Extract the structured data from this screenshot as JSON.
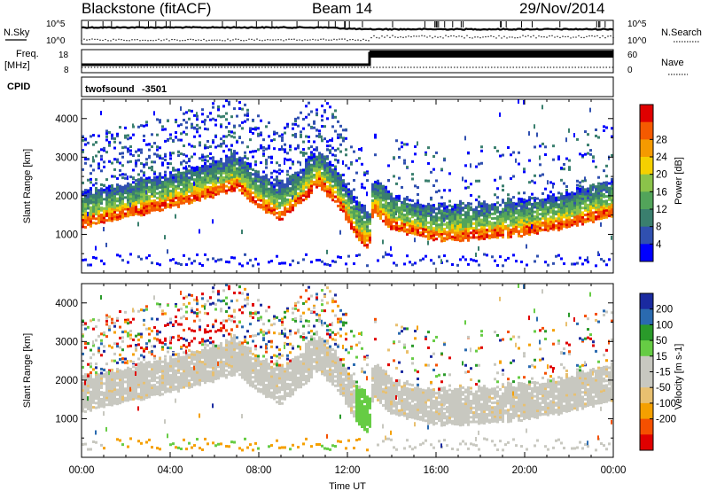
{
  "header": {
    "station": "Blackstone (fitACF)",
    "beam": "Beam 14",
    "date": "29/Nov/2014"
  },
  "left_labels": {
    "nsky": "N.Sky",
    "freq": "Freq.",
    "freq_unit": "[MHz]",
    "cpid": "CPID"
  },
  "right_labels": {
    "nsearch": "N.Search",
    "nave": "Nave"
  },
  "noise_panel": {
    "left_ticks": [
      "10^5",
      "10^0"
    ],
    "right_ticks": [
      "10^5",
      "10^0"
    ]
  },
  "freq_panel": {
    "left_ticks": [
      "18",
      "8"
    ],
    "right_ticks": [
      "60",
      "0"
    ]
  },
  "cpid_panel": {
    "program": "twofsound",
    "cpid_value": "-3501"
  },
  "colors": {
    "power_scale": [
      "#0000ff",
      "#3050b0",
      "#3a7f6e",
      "#52a45a",
      "#8bc34a",
      "#f5d000",
      "#f59a00",
      "#f55a00",
      "#e00000"
    ],
    "velocity_scale": [
      "#e00000",
      "#f55000",
      "#f5a000",
      "#e8c070",
      "#c8c8c0",
      "#c8c8c0",
      "#66cc44",
      "#2a9a2a",
      "#2a6ab0",
      "#1a2aa0"
    ]
  },
  "chart_data": [
    {
      "type": "heatmap",
      "name": "power",
      "xlabel": "",
      "ylabel": "Slant Range [km]",
      "yticks": [
        "1000",
        "2000",
        "3000",
        "4000"
      ],
      "ylim": [
        0,
        4500
      ],
      "colorbar_label": "Power [dB]",
      "colorbar_ticks": [
        "4",
        "8",
        "12",
        "16",
        "20",
        "24",
        "28"
      ],
      "echo_band_center_km": [
        {
          "t": "00:00",
          "range": 1500
        },
        {
          "t": "02:00",
          "range": 1750
        },
        {
          "t": "04:00",
          "range": 2000
        },
        {
          "t": "06:00",
          "range": 2300
        },
        {
          "t": "07:00",
          "range": 2500
        },
        {
          "t": "08:00",
          "range": 2000
        },
        {
          "t": "09:00",
          "range": 1700
        },
        {
          "t": "10:00",
          "range": 2150
        },
        {
          "t": "10:40",
          "range": 2600
        },
        {
          "t": "11:30",
          "range": 2100
        },
        {
          "t": "12:30",
          "range": 1200
        },
        {
          "t": "13:00",
          "range": 950
        },
        {
          "t": "13:10",
          "range": 1900
        },
        {
          "t": "14:00",
          "range": 1450
        },
        {
          "t": "16:00",
          "range": 1150
        },
        {
          "t": "18:00",
          "range": 1200
        },
        {
          "t": "20:00",
          "range": 1300
        },
        {
          "t": "22:00",
          "range": 1500
        },
        {
          "t": "24:00",
          "range": 1800
        }
      ]
    },
    {
      "type": "heatmap",
      "name": "velocity",
      "xlabel": "Time UT",
      "ylabel": "Slant Range [km]",
      "xticks": [
        "00:00",
        "04:00",
        "08:00",
        "12:00",
        "16:00",
        "20:00",
        "00:00"
      ],
      "yticks": [
        "1000",
        "2000",
        "3000",
        "4000"
      ],
      "ylim": [
        0,
        4500
      ],
      "colorbar_label": "Velocity [m s-1]",
      "colorbar_ticks": [
        "200",
        "100",
        "50",
        "15",
        "-15",
        "-50",
        "-100",
        "-200"
      ]
    }
  ]
}
